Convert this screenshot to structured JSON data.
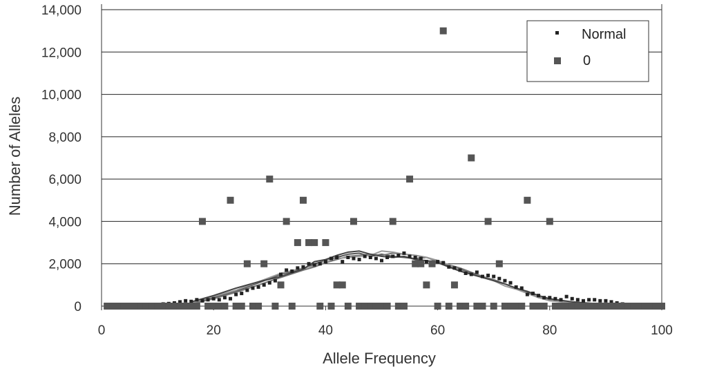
{
  "chart_data": {
    "type": "scatter",
    "xlabel": "Allele Frequency",
    "ylabel": "Number of Alleles",
    "xlim": [
      0,
      100
    ],
    "ylim": [
      0,
      14000
    ],
    "x_ticks": [
      0,
      20,
      40,
      60,
      80,
      100
    ],
    "y_ticks": [
      0,
      2000,
      4000,
      6000,
      8000,
      10000,
      12000,
      14000
    ],
    "x_tick_labels": [
      "0",
      "20",
      "40",
      "60",
      "80",
      "100"
    ],
    "y_tick_labels": [
      "0",
      "2,000",
      "4,000",
      "6,000",
      "8,000",
      "10,000",
      "12,000",
      "14,000"
    ],
    "grid": "horizontal",
    "legend_position": "top-right",
    "legend": [
      {
        "label": "Normal",
        "marker": "small-square",
        "color": "#222222"
      },
      {
        "label": "0",
        "marker": "large-square",
        "color": "#555555"
      }
    ],
    "series": [
      {
        "name": "Normal",
        "marker": "small-square",
        "color": "#222222",
        "points": [
          [
            11,
            100
          ],
          [
            12,
            120
          ],
          [
            13,
            150
          ],
          [
            14,
            200
          ],
          [
            15,
            250
          ],
          [
            16,
            220
          ],
          [
            17,
            300
          ],
          [
            18,
            250
          ],
          [
            19,
            300
          ],
          [
            20,
            350
          ],
          [
            21,
            300
          ],
          [
            22,
            400
          ],
          [
            23,
            350
          ],
          [
            24,
            550
          ],
          [
            25,
            600
          ],
          [
            26,
            750
          ],
          [
            27,
            850
          ],
          [
            28,
            900
          ],
          [
            29,
            1000
          ],
          [
            30,
            1100
          ],
          [
            31,
            1200
          ],
          [
            32,
            1500
          ],
          [
            33,
            1700
          ],
          [
            34,
            1650
          ],
          [
            35,
            1800
          ],
          [
            36,
            1850
          ],
          [
            37,
            2000
          ],
          [
            38,
            1950
          ],
          [
            39,
            2000
          ],
          [
            40,
            2100
          ],
          [
            41,
            2250
          ],
          [
            42,
            2300
          ],
          [
            43,
            2100
          ],
          [
            44,
            2300
          ],
          [
            45,
            2250
          ],
          [
            46,
            2200
          ],
          [
            47,
            2350
          ],
          [
            48,
            2300
          ],
          [
            49,
            2250
          ],
          [
            50,
            2150
          ],
          [
            51,
            2300
          ],
          [
            52,
            2350
          ],
          [
            53,
            2400
          ],
          [
            54,
            2500
          ],
          [
            55,
            2350
          ],
          [
            56,
            2300
          ],
          [
            57,
            2250
          ],
          [
            58,
            2100
          ],
          [
            59,
            2000
          ],
          [
            60,
            2100
          ],
          [
            61,
            2050
          ],
          [
            62,
            1850
          ],
          [
            63,
            1800
          ],
          [
            64,
            1700
          ],
          [
            65,
            1550
          ],
          [
            66,
            1500
          ],
          [
            67,
            1600
          ],
          [
            68,
            1400
          ],
          [
            69,
            1450
          ],
          [
            70,
            1400
          ],
          [
            71,
            1300
          ],
          [
            72,
            1200
          ],
          [
            73,
            1100
          ],
          [
            74,
            900
          ],
          [
            75,
            850
          ],
          [
            76,
            550
          ],
          [
            77,
            600
          ],
          [
            78,
            500
          ],
          [
            79,
            400
          ],
          [
            80,
            400
          ],
          [
            81,
            350
          ],
          [
            82,
            300
          ],
          [
            83,
            450
          ],
          [
            84,
            350
          ],
          [
            85,
            300
          ],
          [
            86,
            250
          ],
          [
            87,
            300
          ],
          [
            88,
            300
          ],
          [
            89,
            250
          ],
          [
            90,
            250
          ],
          [
            91,
            200
          ],
          [
            92,
            150
          ],
          [
            93,
            100
          ]
        ]
      },
      {
        "name": "0",
        "marker": "large-square",
        "color": "#555555",
        "points": [
          [
            1,
            0
          ],
          [
            2,
            0
          ],
          [
            3,
            0
          ],
          [
            4,
            0
          ],
          [
            5,
            0
          ],
          [
            6,
            0
          ],
          [
            7,
            0
          ],
          [
            8,
            0
          ],
          [
            9,
            0
          ],
          [
            10,
            0
          ],
          [
            11,
            0
          ],
          [
            12,
            0
          ],
          [
            13,
            0
          ],
          [
            14,
            0
          ],
          [
            15,
            0
          ],
          [
            16,
            0
          ],
          [
            17,
            0
          ],
          [
            18,
            4000
          ],
          [
            19,
            0
          ],
          [
            20,
            0
          ],
          [
            21,
            0
          ],
          [
            22,
            0
          ],
          [
            23,
            5000
          ],
          [
            24,
            0
          ],
          [
            25,
            0
          ],
          [
            26,
            2000
          ],
          [
            27,
            0
          ],
          [
            28,
            0
          ],
          [
            29,
            2000
          ],
          [
            30,
            6000
          ],
          [
            31,
            0
          ],
          [
            32,
            1000
          ],
          [
            33,
            4000
          ],
          [
            34,
            0
          ],
          [
            35,
            3000
          ],
          [
            36,
            5000
          ],
          [
            37,
            3000
          ],
          [
            38,
            3000
          ],
          [
            39,
            0
          ],
          [
            40,
            3000
          ],
          [
            41,
            0
          ],
          [
            42,
            1000
          ],
          [
            43,
            1000
          ],
          [
            44,
            0
          ],
          [
            45,
            4000
          ],
          [
            46,
            0
          ],
          [
            47,
            0
          ],
          [
            48,
            0
          ],
          [
            49,
            0
          ],
          [
            50,
            0
          ],
          [
            51,
            0
          ],
          [
            52,
            4000
          ],
          [
            53,
            0
          ],
          [
            54,
            0
          ],
          [
            55,
            6000
          ],
          [
            56,
            2000
          ],
          [
            57,
            2000
          ],
          [
            58,
            1000
          ],
          [
            59,
            2000
          ],
          [
            60,
            0
          ],
          [
            61,
            13000
          ],
          [
            62,
            0
          ],
          [
            63,
            1000
          ],
          [
            64,
            0
          ],
          [
            65,
            0
          ],
          [
            66,
            7000
          ],
          [
            67,
            0
          ],
          [
            68,
            0
          ],
          [
            69,
            4000
          ],
          [
            70,
            0
          ],
          [
            71,
            2000
          ],
          [
            72,
            0
          ],
          [
            73,
            0
          ],
          [
            74,
            0
          ],
          [
            75,
            0
          ],
          [
            76,
            5000
          ],
          [
            77,
            0
          ],
          [
            78,
            0
          ],
          [
            79,
            0
          ],
          [
            80,
            4000
          ],
          [
            81,
            0
          ],
          [
            82,
            0
          ],
          [
            83,
            0
          ],
          [
            84,
            0
          ],
          [
            85,
            0
          ],
          [
            86,
            0
          ],
          [
            87,
            0
          ],
          [
            88,
            0
          ],
          [
            89,
            0
          ],
          [
            90,
            0
          ],
          [
            91,
            0
          ],
          [
            92,
            0
          ],
          [
            93,
            0
          ],
          [
            94,
            0
          ],
          [
            95,
            0
          ],
          [
            96,
            0
          ],
          [
            97,
            0
          ],
          [
            98,
            0
          ],
          [
            99,
            0
          ],
          [
            100,
            0
          ]
        ]
      }
    ],
    "lines": [
      {
        "color": "#555555",
        "points": [
          [
            16,
            150
          ],
          [
            20,
            400
          ],
          [
            24,
            700
          ],
          [
            28,
            1100
          ],
          [
            32,
            1500
          ],
          [
            36,
            1750
          ],
          [
            38,
            2000
          ],
          [
            40,
            2150
          ],
          [
            42,
            2300
          ],
          [
            44,
            2450
          ],
          [
            46,
            2500
          ],
          [
            48,
            2350
          ],
          [
            50,
            2450
          ],
          [
            52,
            2350
          ],
          [
            54,
            2300
          ],
          [
            56,
            2250
          ],
          [
            58,
            2300
          ],
          [
            60,
            2150
          ],
          [
            62,
            1900
          ],
          [
            64,
            1750
          ],
          [
            66,
            1550
          ],
          [
            68,
            1400
          ],
          [
            70,
            1200
          ],
          [
            72,
            1050
          ],
          [
            74,
            850
          ],
          [
            76,
            650
          ],
          [
            78,
            400
          ],
          [
            80,
            300
          ],
          [
            84,
            200
          ],
          [
            88,
            100
          ],
          [
            92,
            60
          ]
        ]
      },
      {
        "color": "#777777",
        "points": [
          [
            16,
            100
          ],
          [
            20,
            350
          ],
          [
            24,
            650
          ],
          [
            28,
            1000
          ],
          [
            32,
            1350
          ],
          [
            36,
            1700
          ],
          [
            38,
            1850
          ],
          [
            40,
            2050
          ],
          [
            42,
            2200
          ],
          [
            44,
            2350
          ],
          [
            46,
            2400
          ],
          [
            48,
            2450
          ],
          [
            50,
            2400
          ],
          [
            52,
            2500
          ],
          [
            54,
            2450
          ],
          [
            56,
            2400
          ],
          [
            58,
            2300
          ],
          [
            60,
            2100
          ],
          [
            62,
            1950
          ],
          [
            64,
            1800
          ],
          [
            66,
            1600
          ],
          [
            68,
            1400
          ],
          [
            70,
            1250
          ],
          [
            72,
            1050
          ],
          [
            74,
            850
          ],
          [
            76,
            600
          ],
          [
            78,
            420
          ],
          [
            80,
            300
          ],
          [
            84,
            150
          ],
          [
            88,
            90
          ],
          [
            92,
            50
          ]
        ]
      },
      {
        "color": "#999999",
        "points": [
          [
            16,
            150
          ],
          [
            20,
            450
          ],
          [
            24,
            750
          ],
          [
            28,
            1150
          ],
          [
            32,
            1550
          ],
          [
            36,
            1800
          ],
          [
            38,
            1900
          ],
          [
            40,
            2150
          ],
          [
            42,
            2250
          ],
          [
            44,
            2300
          ],
          [
            46,
            2350
          ],
          [
            48,
            2400
          ],
          [
            50,
            2600
          ],
          [
            52,
            2550
          ],
          [
            54,
            2450
          ],
          [
            56,
            2400
          ],
          [
            58,
            2300
          ],
          [
            60,
            2150
          ],
          [
            62,
            1950
          ],
          [
            64,
            1700
          ],
          [
            66,
            1500
          ],
          [
            68,
            1350
          ],
          [
            70,
            1200
          ],
          [
            72,
            950
          ],
          [
            74,
            800
          ],
          [
            76,
            600
          ],
          [
            78,
            400
          ],
          [
            80,
            250
          ],
          [
            84,
            150
          ],
          [
            88,
            80
          ],
          [
            92,
            40
          ]
        ]
      },
      {
        "color": "#444444",
        "points": [
          [
            16,
            200
          ],
          [
            20,
            500
          ],
          [
            24,
            850
          ],
          [
            28,
            1150
          ],
          [
            32,
            1400
          ],
          [
            36,
            1750
          ],
          [
            38,
            2100
          ],
          [
            40,
            2200
          ],
          [
            42,
            2400
          ],
          [
            44,
            2550
          ],
          [
            46,
            2600
          ],
          [
            48,
            2450
          ],
          [
            50,
            2350
          ],
          [
            52,
            2300
          ],
          [
            54,
            2350
          ],
          [
            56,
            2200
          ],
          [
            58,
            2150
          ],
          [
            60,
            2050
          ],
          [
            62,
            1850
          ],
          [
            64,
            1650
          ],
          [
            66,
            1500
          ],
          [
            68,
            1350
          ],
          [
            70,
            1200
          ],
          [
            72,
            1050
          ],
          [
            74,
            850
          ],
          [
            76,
            700
          ],
          [
            78,
            500
          ],
          [
            80,
            350
          ],
          [
            84,
            200
          ],
          [
            88,
            120
          ],
          [
            92,
            70
          ]
        ]
      }
    ]
  }
}
